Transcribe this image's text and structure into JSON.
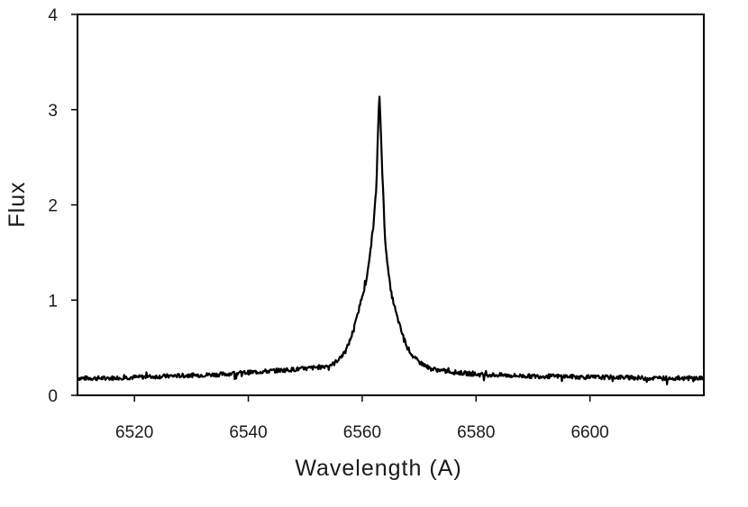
{
  "chart_data": {
    "type": "line",
    "title": "",
    "xlabel": "Wavelength (A)",
    "ylabel": "Flux",
    "xlim": [
      6510,
      6620
    ],
    "ylim": [
      0,
      4
    ],
    "x_ticks": [
      6520,
      6540,
      6560,
      6580,
      6600
    ],
    "y_ticks": [
      0,
      1,
      2,
      3,
      4
    ],
    "x_tick_labels": [
      "6520",
      "6540",
      "6560",
      "6580",
      "6600"
    ],
    "y_tick_labels": [
      "0",
      "1",
      "2",
      "3",
      "4"
    ],
    "grid": false,
    "legend": "none",
    "line_color": "#000000",
    "series": [
      {
        "x": [
          6510,
          6515,
          6520,
          6525,
          6530,
          6535,
          6540,
          6545,
          6550,
          6553,
          6555,
          6557,
          6558,
          6559,
          6560,
          6560.5,
          6561,
          6561.5,
          6562,
          6562.5,
          6562.8,
          6563.0,
          6563.2,
          6563.5,
          6564,
          6564.5,
          6565,
          6566,
          6567,
          6568,
          6569,
          6570,
          6572,
          6575,
          6580,
          6585,
          6590,
          6595,
          6600,
          6605,
          6610,
          6615,
          6620
        ],
        "y": [
          0.18,
          0.18,
          0.19,
          0.2,
          0.21,
          0.22,
          0.24,
          0.26,
          0.28,
          0.3,
          0.33,
          0.45,
          0.6,
          0.8,
          1.05,
          1.15,
          1.3,
          1.55,
          1.8,
          2.2,
          2.8,
          3.2,
          2.9,
          2.4,
          1.65,
          1.35,
          1.1,
          0.85,
          0.65,
          0.5,
          0.4,
          0.35,
          0.28,
          0.25,
          0.22,
          0.21,
          0.2,
          0.2,
          0.19,
          0.19,
          0.18,
          0.18,
          0.18
        ]
      }
    ]
  }
}
